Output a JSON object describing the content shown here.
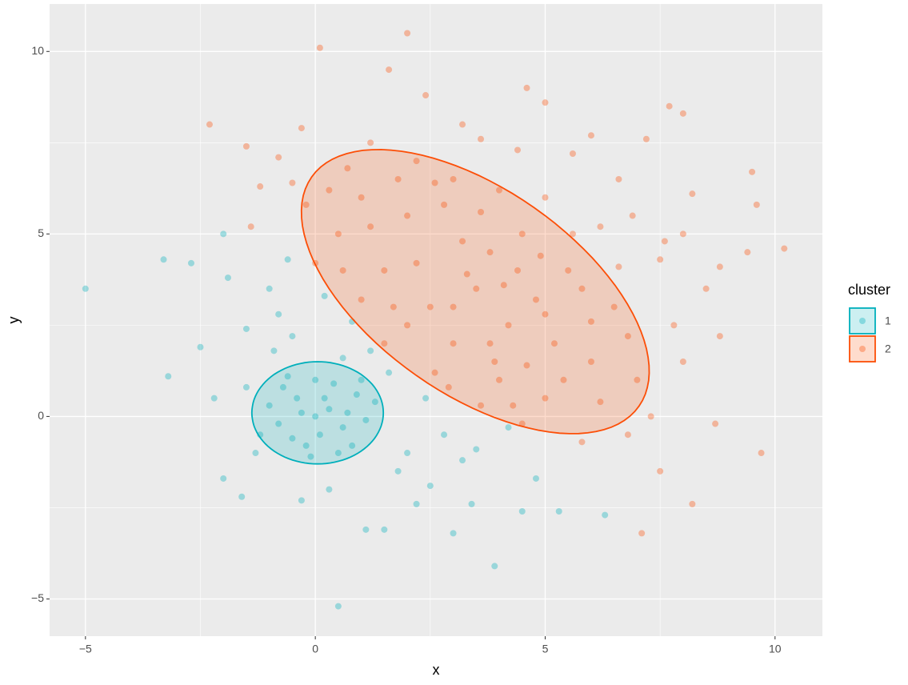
{
  "chart_data": {
    "type": "scatter",
    "x_label": "x",
    "y_label": "y",
    "xlim": [
      -5.78,
      11.03
    ],
    "ylim": [
      -6.02,
      11.3
    ],
    "xticks": [
      {
        "value": -5,
        "label": "−5"
      },
      0,
      5,
      10
    ],
    "yticks": [
      {
        "value": -5,
        "label": "−5"
      },
      0,
      5,
      10
    ],
    "grid": true,
    "minor_grid": true,
    "legend_title": "cluster",
    "legend": "right",
    "series": [
      {
        "name": "1",
        "color": "#00AFBB",
        "ellipse": {
          "center": [
            0.05,
            0.1
          ],
          "axis1": [
            1.43,
            0
          ],
          "axis2": [
            0,
            1.4
          ]
        },
        "x": [
          0,
          0.3,
          -0.4,
          0.6,
          -0.8,
          0.9,
          -0.2,
          0.4,
          -1.0,
          1.1,
          0.1,
          -0.5,
          0.7,
          -0.3,
          0.2,
          -0.7,
          0.8,
          -1.2,
          1.3,
          0,
          -0.1,
          0.5,
          -0.6,
          1.0,
          -1.5,
          -1.0,
          -0.6,
          -2.0,
          -1.9,
          -3.3,
          -5,
          -2.5,
          -3.2,
          -1.5,
          -2.0,
          -1.6,
          -0.3,
          0.5,
          1.1,
          1.5,
          2.5,
          3.0,
          3.4,
          3.9,
          4.5,
          5.3,
          6.3,
          2.0,
          2.8,
          3.5,
          4.2,
          1.6,
          0.8,
          0.2,
          -0.5,
          1.2,
          -0.8,
          2.4,
          1.8,
          3.2,
          0.3,
          -1.3,
          -0.9,
          0.6,
          -2.2,
          -2.7,
          4.8,
          2.2
        ],
        "values": [
          0,
          0.2,
          0.5,
          -0.3,
          -0.2,
          0.6,
          -0.8,
          0.9,
          0.3,
          -0.1,
          -0.5,
          -0.6,
          0.1,
          0.1,
          0.5,
          0.8,
          -0.8,
          -0.5,
          0.4,
          1.0,
          -1.1,
          -1.0,
          1.1,
          1.0,
          2.4,
          3.5,
          4.3,
          5.0,
          3.8,
          4.3,
          3.5,
          1.9,
          1.1,
          0.8,
          -1.7,
          -2.2,
          -2.3,
          -5.2,
          -3.1,
          -3.1,
          -1.9,
          -3.2,
          -2.4,
          -4.1,
          -2.6,
          -2.6,
          -2.7,
          -1.0,
          -0.5,
          -0.9,
          -0.3,
          1.2,
          2.6,
          3.3,
          2.2,
          1.8,
          2.8,
          0.5,
          -1.5,
          -1.2,
          -2.0,
          -1.0,
          1.8,
          1.6,
          0.5,
          4.2,
          -1.7,
          -2.4
        ]
      },
      {
        "name": "2",
        "color": "#FC4E07",
        "ellipse": {
          "center": [
            3.48,
            3.42
          ],
          "axis1": [
            3.56,
            -3.14
          ],
          "axis2": [
            1.28,
            2.3
          ]
        },
        "x": [
          3.5,
          2.0,
          1.0,
          3.0,
          4.5,
          5.5,
          6.5,
          6.0,
          5.0,
          4.0,
          3.0,
          2.5,
          1.5,
          0.5,
          0,
          1.0,
          2.0,
          3.8,
          4.2,
          5.2,
          5.8,
          6.8,
          7.0,
          4.8,
          3.2,
          2.8,
          4.0,
          5.0,
          1.8,
          0.7,
          -0.2,
          -0.5,
          6.2,
          7.5,
          8.0,
          8.5,
          7.8,
          8.8,
          8.0,
          7.3,
          6.8,
          8.7,
          9.7,
          7.5,
          8.2,
          7.1,
          5.8,
          4.5,
          3.6,
          2.6,
          1.5,
          -2.3,
          -1.5,
          -0.3,
          0.1,
          1.6,
          2.0,
          2.4,
          3.2,
          4.6,
          5.0,
          6.0,
          7.2,
          7.7,
          8.0,
          8.2,
          9.5,
          9.6,
          10.2,
          9.4,
          8.8,
          -1.4,
          -1.2,
          -0.8,
          0.3,
          1.2,
          2.2,
          3.6,
          4.4,
          5.6,
          6.6,
          6.9,
          7.6,
          3.0,
          3.8,
          4.6,
          5.4,
          6.2,
          2.2,
          3.3,
          4.1,
          4.9,
          5.6,
          1.2,
          2.6,
          3.6,
          4.4,
          6.0,
          5.0,
          3.9,
          6.6,
          1.7,
          0.6,
          2.9,
          4.3
        ],
        "values": [
          3.5,
          5.5,
          6.0,
          6.5,
          5.0,
          4.0,
          3.0,
          1.5,
          0.5,
          1.0,
          2.0,
          3.0,
          4.0,
          5.0,
          4.2,
          3.2,
          2.5,
          4.5,
          2.5,
          2.0,
          3.5,
          2.2,
          1.0,
          3.2,
          4.8,
          5.8,
          6.2,
          6.0,
          6.5,
          6.8,
          5.8,
          6.4,
          5.2,
          4.3,
          5.0,
          3.5,
          2.5,
          2.2,
          1.5,
          0.0,
          -0.5,
          -0.2,
          -1.0,
          -1.5,
          -2.4,
          -3.2,
          -0.7,
          -0.2,
          0.3,
          1.2,
          2.0,
          8.0,
          7.4,
          7.9,
          10.1,
          9.5,
          10.5,
          8.8,
          8.0,
          9.0,
          8.6,
          7.7,
          7.6,
          8.5,
          8.3,
          6.1,
          6.7,
          5.8,
          4.6,
          4.5,
          4.1,
          5.2,
          6.3,
          7.1,
          6.2,
          7.5,
          7.0,
          7.6,
          7.3,
          7.2,
          6.5,
          5.5,
          4.8,
          3.0,
          2.0,
          1.4,
          1.0,
          0.4,
          4.2,
          3.9,
          3.6,
          4.4,
          5.0,
          5.2,
          6.4,
          5.6,
          4.0,
          2.6,
          2.8,
          1.5,
          4.1,
          3.0,
          4.0,
          0.8,
          0.3
        ]
      }
    ]
  }
}
